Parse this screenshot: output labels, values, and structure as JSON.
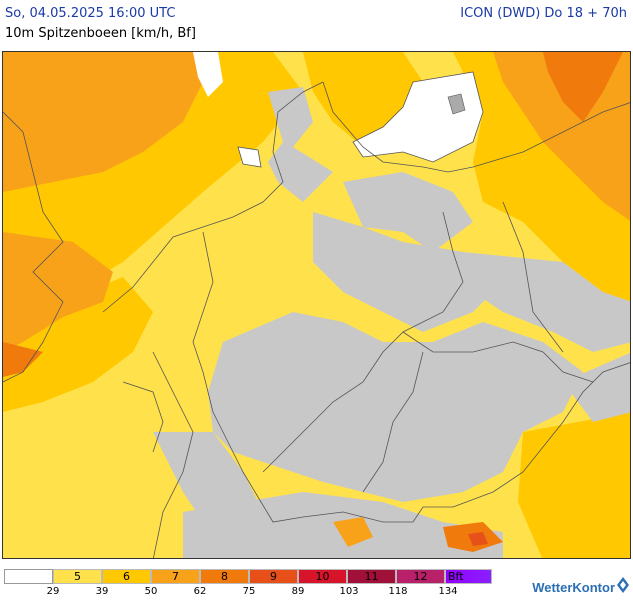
{
  "header": {
    "run_time": "So, 04.05.2025 16:00 UTC",
    "model_valid": "ICON (DWD) Do 18 + 70h",
    "parameter": "10m Spitzenboeen [km/h, Bf]"
  },
  "colors": {
    "bf_lt5": "#ffffff",
    "bf5": "#ffe24b",
    "bf6": "#ffc800",
    "bf7": "#f8a21a",
    "bf8": "#f07a0c",
    "bf9": "#e8501a",
    "bf10": "#d8142a",
    "bf11": "#a01038",
    "bf12": "#b8206a",
    "bf_above": "#9400ff",
    "no_data_grey": "#c8c8c8",
    "border_line": "#555555"
  },
  "legend": {
    "labels": [
      "",
      "5",
      "6",
      "7",
      "8",
      "9",
      "10",
      "11",
      "12",
      "Bft"
    ],
    "thresholds": [
      "29",
      "39",
      "50",
      "62",
      "75",
      "89",
      "103",
      "118",
      "134"
    ]
  },
  "brand": {
    "name": "WetterKontor"
  }
}
